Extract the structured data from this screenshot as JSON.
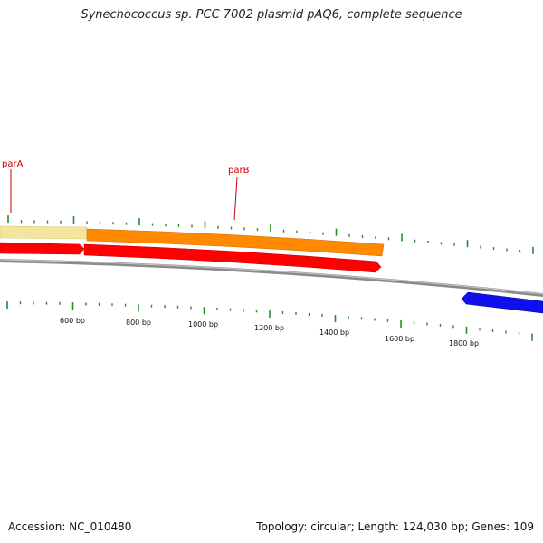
{
  "title": "Synechococcus sp. PCC 7002 plasmid pAQ6, complete sequence",
  "footer": {
    "accession": "Accession: NC_010480",
    "summary": "Topology: circular; Length: 124,030 bp; Genes: 109"
  },
  "gene_labels": [
    {
      "name": "parA",
      "color": "#cc0000"
    },
    {
      "name": "parB",
      "color": "#cc0000"
    }
  ],
  "scale_labels": [
    "600 bp",
    "800 bp",
    "1000 bp",
    "1200 bp",
    "1400 bp",
    "1600 bp",
    "1800 bp"
  ],
  "colors": {
    "gene_feature_outer": "#f5e6a0",
    "gene_feature_parB": "#ff8800",
    "cds_red": "#ff0000",
    "cds_blue": "#1010ee",
    "backbone": "#888888",
    "tick": "#2a8a2a",
    "label_line": "#cc0000"
  }
}
